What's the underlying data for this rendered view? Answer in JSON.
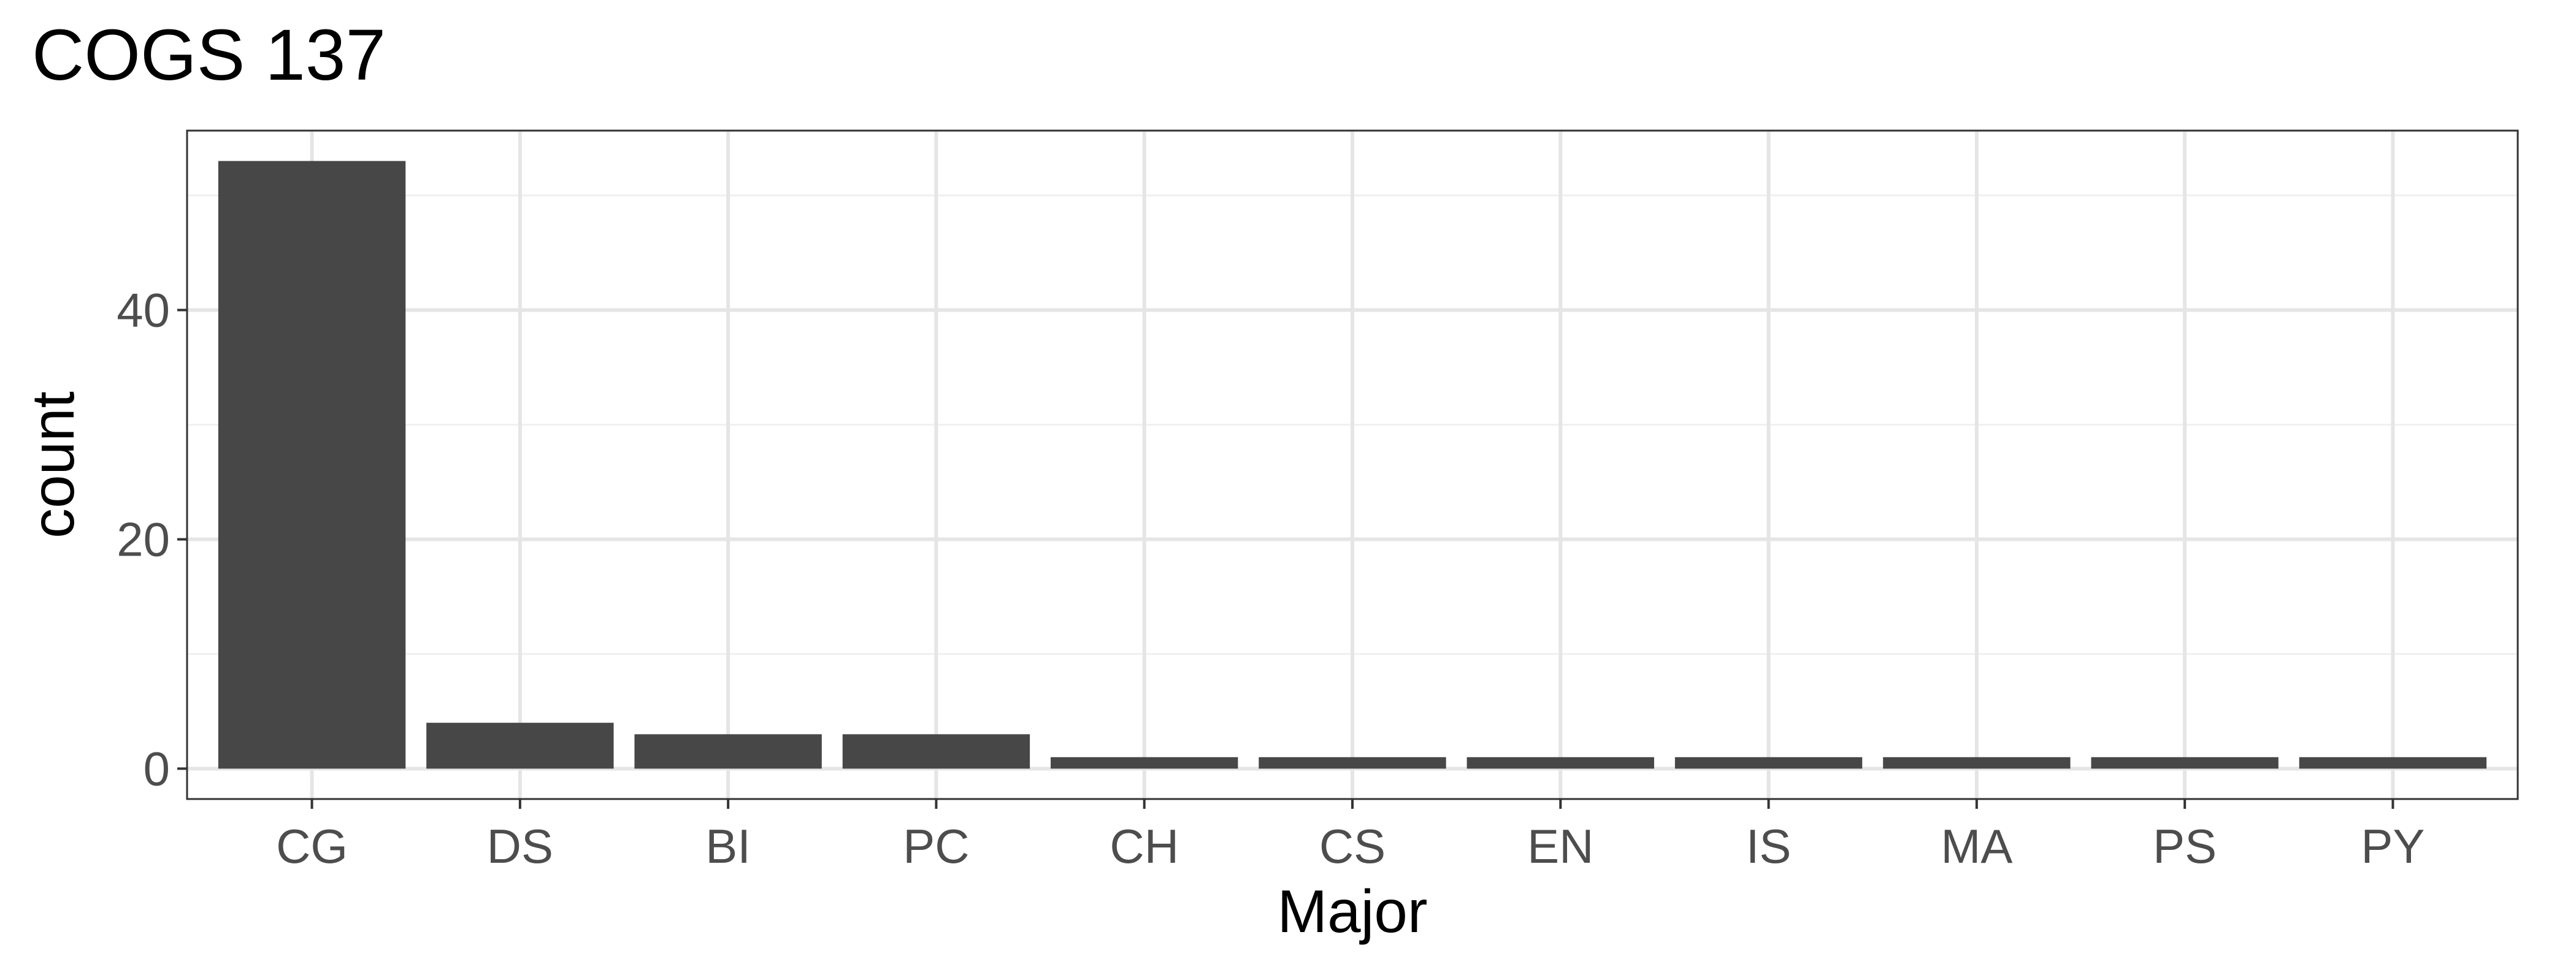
{
  "chart_data": {
    "type": "bar",
    "title": "COGS 137",
    "xlabel": "Major",
    "ylabel": "count",
    "categories": [
      "CG",
      "DS",
      "BI",
      "PC",
      "CH",
      "CS",
      "EN",
      "IS",
      "MA",
      "PS",
      "PY"
    ],
    "values": [
      53,
      4,
      3,
      3,
      1,
      1,
      1,
      1,
      1,
      1,
      1
    ],
    "ylim": [
      -2.65,
      55.65
    ],
    "yticks": [
      0,
      20,
      40
    ],
    "ytick_labels": [
      "0",
      "20",
      "40"
    ],
    "y_minor_ticks": [
      10,
      30,
      50
    ],
    "grid": true,
    "legend": "none",
    "colors": {
      "bar": "#474747",
      "grid_major": "#e5e5e5",
      "grid_minor": "#f0f0f0",
      "panel_border": "#333333",
      "tick_text": "#4d4d4d",
      "text": "#000000",
      "background": "#ffffff"
    }
  }
}
